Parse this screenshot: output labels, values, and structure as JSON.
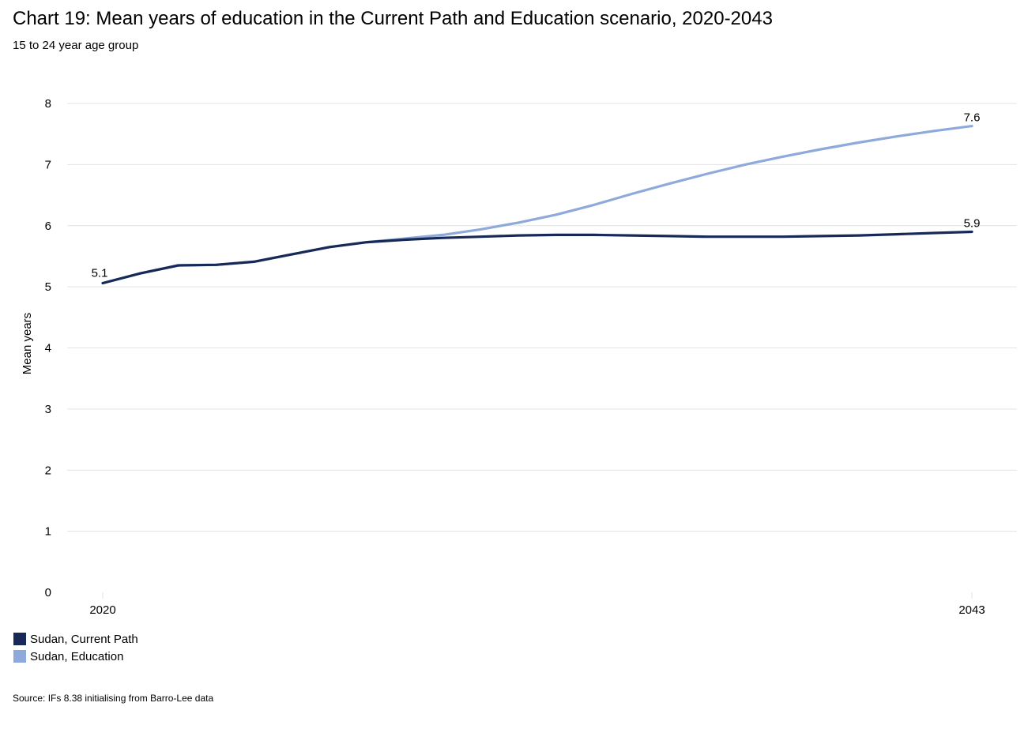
{
  "title": "Chart 19: Mean years of education in the Current Path and Education scenario, 2020-2043",
  "subtitle": "15 to 24 year age group",
  "source": "Source: IFs 8.38 initialising from Barro-Lee data",
  "chart_data": {
    "type": "line",
    "ylabel": "Mean years",
    "xlabel": "",
    "ylim": [
      0,
      8
    ],
    "y_ticks": [
      "0",
      "1",
      "2",
      "3",
      "4",
      "5",
      "6",
      "7",
      "8"
    ],
    "x_tick_labels": [
      "2020",
      "2043"
    ],
    "grid": "horizontal",
    "legend_position": "bottom-left",
    "x": [
      2020,
      2021,
      2022,
      2023,
      2024,
      2025,
      2026,
      2027,
      2028,
      2029,
      2030,
      2031,
      2032,
      2033,
      2034,
      2035,
      2036,
      2037,
      2038,
      2039,
      2040,
      2041,
      2042,
      2043
    ],
    "series": [
      {
        "name": "Sudan, Current Path",
        "color": "#172A57",
        "values": [
          5.06,
          5.22,
          5.35,
          5.36,
          5.41,
          5.53,
          5.65,
          5.73,
          5.77,
          5.8,
          5.82,
          5.84,
          5.85,
          5.85,
          5.84,
          5.83,
          5.82,
          5.82,
          5.82,
          5.83,
          5.84,
          5.86,
          5.88,
          5.9
        ],
        "end_labels": {
          "first": "5.1",
          "last": "5.9"
        }
      },
      {
        "name": "Sudan, Education",
        "color": "#8EAADB",
        "values": [
          5.06,
          5.22,
          5.35,
          5.36,
          5.41,
          5.53,
          5.65,
          5.73,
          5.79,
          5.85,
          5.94,
          6.05,
          6.18,
          6.34,
          6.52,
          6.69,
          6.85,
          7.0,
          7.13,
          7.25,
          7.36,
          7.46,
          7.55,
          7.63
        ],
        "end_labels": {
          "last": "7.6"
        }
      }
    ]
  }
}
